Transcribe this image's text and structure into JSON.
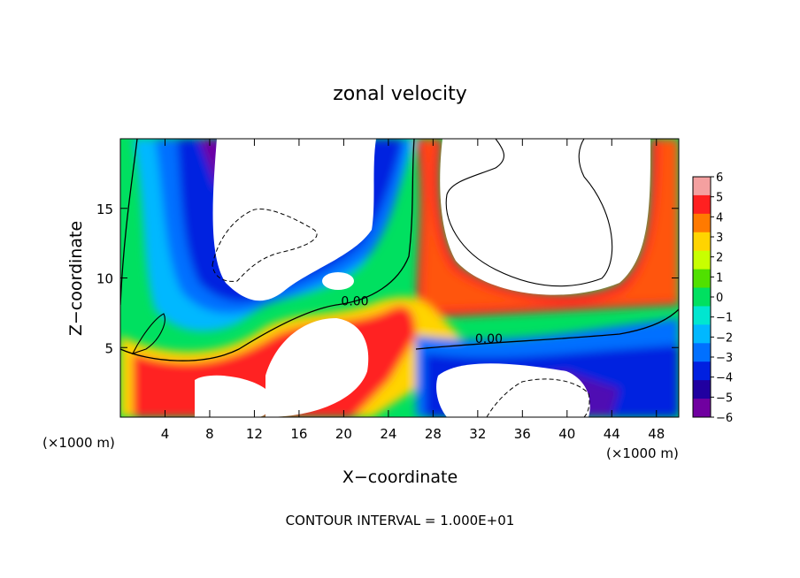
{
  "chart_data": {
    "type": "heatmap",
    "title": "zonal velocity",
    "xlabel": "X−coordinate",
    "ylabel": "Z−coordinate",
    "x_unit_label": "(×1000 m)",
    "y_unit_label": "(×1000 m)",
    "footer": "CONTOUR INTERVAL = 1.000E+01",
    "xlim": [
      0,
      50
    ],
    "ylim": [
      0,
      20
    ],
    "x_ticks": [
      4,
      8,
      12,
      16,
      20,
      24,
      28,
      32,
      36,
      40,
      44,
      48
    ],
    "y_ticks": [
      5,
      10,
      15
    ],
    "colorbar": {
      "range": [
        -6,
        6
      ],
      "ticks": [
        6,
        5,
        4,
        3,
        2,
        1,
        0,
        -1,
        -2,
        -3,
        -4,
        -5,
        -6
      ],
      "tick_labels": [
        "6",
        "5",
        "4",
        "3",
        "2",
        "1",
        "0",
        "−1",
        "−2",
        "−3",
        "−4",
        "−5",
        "−6"
      ],
      "colors": [
        "#f4a0a0",
        "#ff2020",
        "#ff7a00",
        "#ffd400",
        "#c8ff00",
        "#50e000",
        "#00e060",
        "#00e6d0",
        "#00b8ff",
        "#0070ff",
        "#0020e0",
        "#2000a0",
        "#7000a0"
      ]
    },
    "contour_labels": [
      {
        "text": "0.00",
        "x": 21,
        "z": 8.3
      },
      {
        "text": "0.00",
        "x": 33,
        "z": 5.6
      }
    ],
    "grid": false
  }
}
